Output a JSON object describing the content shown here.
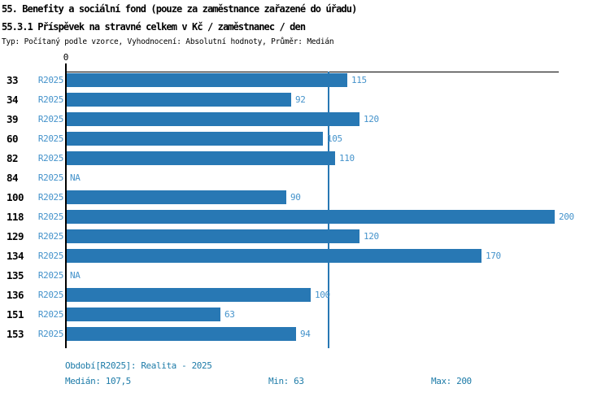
{
  "header": {
    "title_line1": "55. Benefity a sociální fond (pouze za zaměstnance zařazené do úřadu)",
    "title_line2": "55.3.1 Příspěvek na stravné celkem v Kč / zaměstnanec / den",
    "subtitle": "Typ: Počítaný podle vzorce, Vyhodnocení: Absolutní hodnoty, Průměr: Medián"
  },
  "chart_data": {
    "type": "bar",
    "orientation": "horizontal",
    "title": "55.3.1 Příspěvek na stravné celkem v Kč / zaměstnanec / den",
    "categories": [
      "33",
      "34",
      "39",
      "60",
      "82",
      "84",
      "100",
      "118",
      "129",
      "134",
      "135",
      "136",
      "151",
      "153"
    ],
    "series": [
      {
        "name": "R2025",
        "values": [
          115,
          92,
          120,
          105,
          110,
          null,
          90,
          200,
          120,
          170,
          null,
          100,
          63,
          94
        ]
      }
    ],
    "value_labels": [
      "115",
      "92",
      "120",
      "105",
      "110",
      "NA",
      "90",
      "200",
      "120",
      "170",
      "NA",
      "100",
      "63",
      "94"
    ],
    "na_text": "NA",
    "zero_label": "0",
    "xlim": [
      0,
      202
    ],
    "median_value": 107.5,
    "grid": false,
    "legend_position": "none"
  },
  "colors": {
    "bar": "#2878b4",
    "median_line": "#2878b4",
    "series_label": "#4593cb",
    "value_label": "#4593cb",
    "footer_text": "#1d7ba8",
    "axis": "#000000"
  },
  "footer": {
    "period": "Období[R2025]: Realita - 2025",
    "median": "Medián: 107,5",
    "min": "Min: 63",
    "max": "Max: 200"
  }
}
